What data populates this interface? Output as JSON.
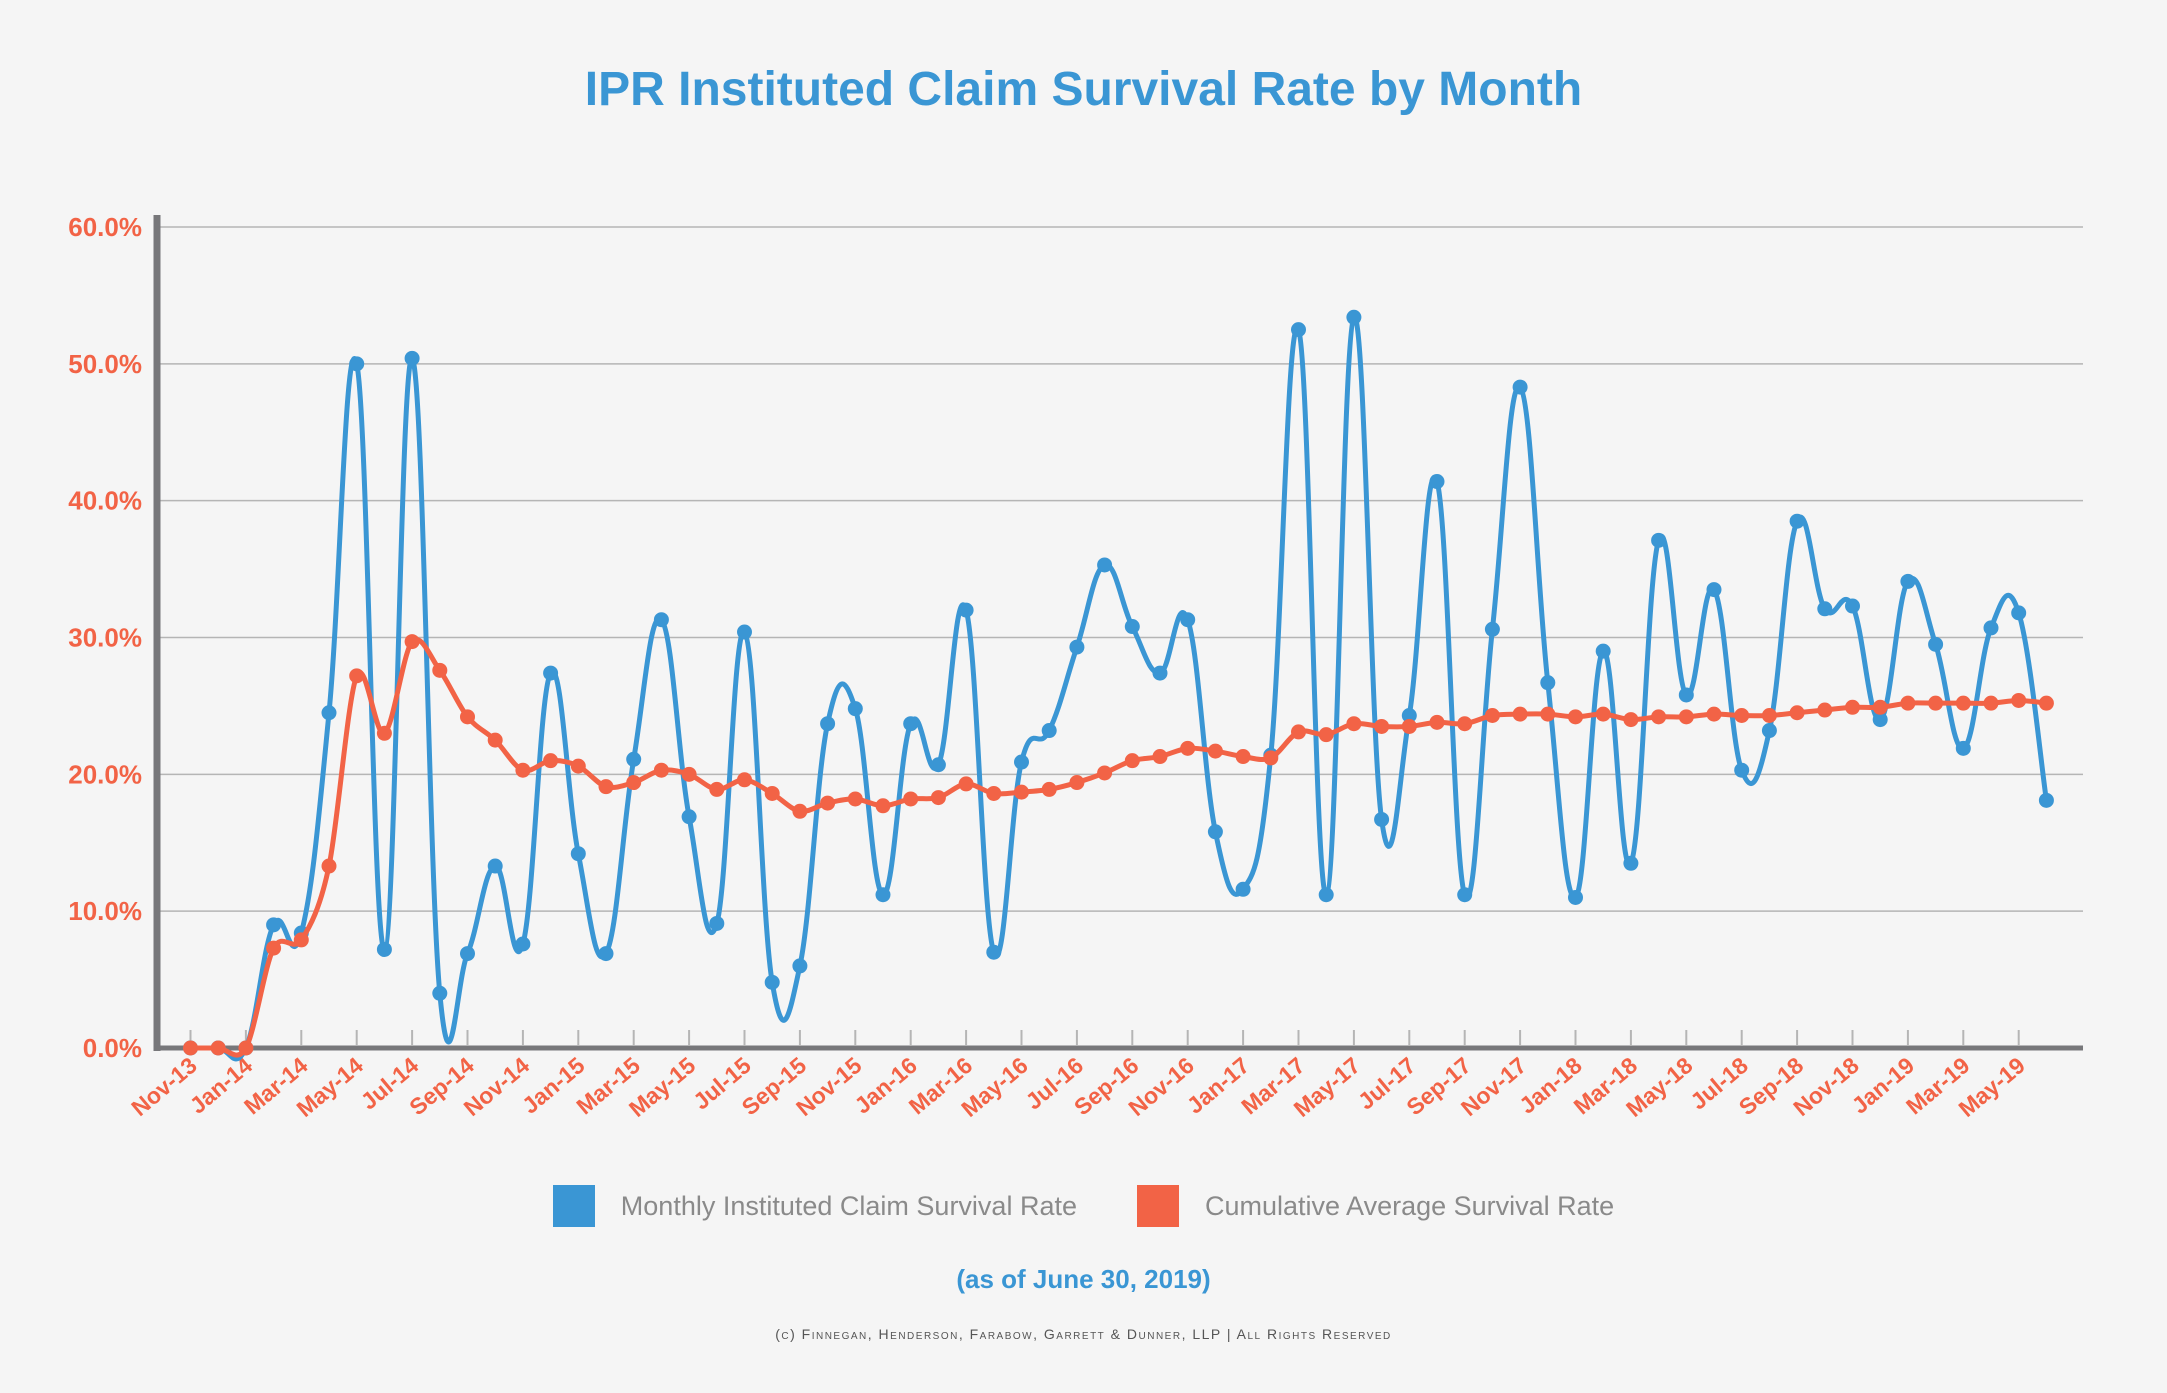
{
  "title": "IPR Instituted Claim Survival Rate by Month",
  "as_of": "(as of June 30, 2019)",
  "copyright": "(c) Finnegan, Henderson, Farabow, Garrett & Dunner, LLP | All Rights Reserved",
  "colors": {
    "monthly": "#3a96d4",
    "cumulative": "#f26346",
    "axis": "#77777a",
    "grid": "#b5b5b5"
  },
  "chart_data": {
    "type": "line",
    "title": "IPR Instituted Claim Survival Rate by Month",
    "ylim": [
      0,
      60
    ],
    "yticks": [
      "0.0%",
      "10.0%",
      "20.0%",
      "30.0%",
      "40.0%",
      "50.0%",
      "60.0%"
    ],
    "grid": true,
    "legend": "bottom",
    "x": [
      "Nov-13",
      "Dec-13",
      "Jan-14",
      "Feb-14",
      "Mar-14",
      "Apr-14",
      "May-14",
      "Jun-14",
      "Jul-14",
      "Aug-14",
      "Sep-14",
      "Oct-14",
      "Nov-14",
      "Dec-14",
      "Jan-15",
      "Feb-15",
      "Mar-15",
      "Apr-15",
      "May-15",
      "Jun-15",
      "Jul-15",
      "Aug-15",
      "Sep-15",
      "Oct-15",
      "Nov-15",
      "Dec-15",
      "Jan-16",
      "Feb-16",
      "Mar-16",
      "Apr-16",
      "May-16",
      "Jun-16",
      "Jul-16",
      "Aug-16",
      "Sep-16",
      "Oct-16",
      "Nov-16",
      "Dec-16",
      "Jan-17",
      "Feb-17",
      "Mar-17",
      "Apr-17",
      "May-17",
      "Jun-17",
      "Jul-17",
      "Aug-17",
      "Sep-17",
      "Oct-17",
      "Nov-17",
      "Dec-17",
      "Jan-18",
      "Feb-18",
      "Mar-18",
      "Apr-18",
      "May-18",
      "Jun-18",
      "Jul-18",
      "Aug-18",
      "Sep-18",
      "Oct-18",
      "Nov-18",
      "Dec-18",
      "Jan-19",
      "Feb-19",
      "Mar-19",
      "Apr-19",
      "May-19",
      "Jun-19"
    ],
    "xtick_labels": [
      "Nov-13",
      "Jan-14",
      "Mar-14",
      "May-14",
      "Jul-14",
      "Sep-14",
      "Nov-14",
      "Jan-15",
      "Mar-15",
      "May-15",
      "Jul-15",
      "Sep-15",
      "Nov-15",
      "Jan-16",
      "Mar-16",
      "May-16",
      "Jul-16",
      "Sep-16",
      "Nov-16",
      "Jan-17",
      "Mar-17",
      "May-17",
      "Jul-17",
      "Sep-17",
      "Nov-17",
      "Jan-18",
      "Mar-18",
      "May-18",
      "Jul-18",
      "Sep-18",
      "Nov-18",
      "Jan-19",
      "Mar-19",
      "May-19"
    ],
    "series": [
      {
        "name": "Monthly Instituted Claim Survival Rate",
        "values": [
          0,
          0,
          0,
          9.0,
          8.4,
          24.5,
          50.0,
          7.2,
          50.4,
          4.0,
          6.9,
          13.3,
          7.6,
          27.4,
          14.2,
          6.9,
          21.1,
          31.3,
          16.9,
          9.1,
          30.4,
          4.8,
          6.0,
          23.7,
          24.8,
          11.2,
          23.7,
          20.7,
          32.0,
          7.0,
          20.9,
          23.2,
          29.3,
          35.3,
          30.8,
          27.4,
          31.3,
          15.8,
          11.6,
          21.4,
          52.5,
          11.2,
          53.4,
          16.7,
          24.3,
          41.4,
          11.2,
          30.6,
          48.3,
          26.7,
          11.0,
          29.0,
          13.5,
          37.1,
          25.8,
          33.5,
          20.3,
          23.2,
          38.5,
          32.1,
          32.3,
          24.0,
          34.1,
          29.5,
          21.9,
          30.7,
          31.8,
          18.1
        ]
      },
      {
        "name": "Cumulative Average Survival Rate",
        "values": [
          0,
          0,
          0,
          7.3,
          7.9,
          13.3,
          27.2,
          23.0,
          29.7,
          27.6,
          24.2,
          22.5,
          20.3,
          21.0,
          20.6,
          19.1,
          19.4,
          20.3,
          20.0,
          18.9,
          19.6,
          18.6,
          17.3,
          17.9,
          18.2,
          17.7,
          18.2,
          18.3,
          19.3,
          18.6,
          18.7,
          18.9,
          19.4,
          20.1,
          21.0,
          21.3,
          21.9,
          21.7,
          21.3,
          21.2,
          23.1,
          22.9,
          23.7,
          23.5,
          23.5,
          23.8,
          23.7,
          24.3,
          24.4,
          24.4,
          24.2,
          24.4,
          24.0,
          24.2,
          24.2,
          24.4,
          24.3,
          24.3,
          24.5,
          24.7,
          24.9,
          24.9,
          25.2,
          25.2,
          25.2,
          25.2,
          25.4,
          25.2
        ]
      }
    ]
  }
}
